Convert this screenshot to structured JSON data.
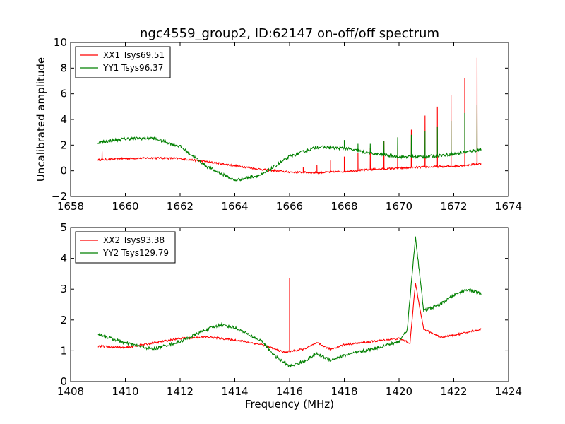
{
  "title": "ngc4559_group2, ID:62147 on-off/off spectrum",
  "colors": {
    "red": "#ff0000",
    "green": "#008000"
  },
  "chart_data": [
    {
      "type": "line",
      "xlabel": "",
      "ylabel": "Uncalibrated amplitude",
      "xlim": [
        1658,
        1674
      ],
      "ylim": [
        -2,
        10
      ],
      "xticks": [
        "1658",
        "1660",
        "1662",
        "1664",
        "1666",
        "1668",
        "1670",
        "1672",
        "1674"
      ],
      "yticks": [
        "−2",
        "0",
        "2",
        "4",
        "6",
        "8",
        "10"
      ],
      "legend_position": "top-left",
      "series": [
        {
          "name": "XX1 Tsys69.51",
          "color": "#ff0000",
          "x": [
            1659.0,
            1660.0,
            1661.0,
            1662.0,
            1663.0,
            1664.0,
            1665.0,
            1666.0,
            1667.0,
            1668.0,
            1669.0,
            1670.0,
            1671.0,
            1672.0,
            1673.0
          ],
          "values": [
            0.85,
            0.95,
            1.0,
            0.95,
            0.7,
            0.4,
            0.1,
            -0.1,
            -0.15,
            -0.05,
            0.1,
            0.2,
            0.3,
            0.35,
            0.55
          ],
          "spikes": [
            [
              1659.15,
              1.5
            ],
            [
              1666.5,
              0.3
            ],
            [
              1667.0,
              0.45
            ],
            [
              1667.5,
              0.8
            ],
            [
              1668.0,
              1.1
            ],
            [
              1668.5,
              1.4
            ],
            [
              1668.95,
              1.8
            ],
            [
              1669.45,
              2.3
            ],
            [
              1669.95,
              2.6
            ],
            [
              1670.45,
              3.2
            ],
            [
              1670.95,
              4.3
            ],
            [
              1671.4,
              5.0
            ],
            [
              1671.9,
              5.9
            ],
            [
              1672.4,
              7.2
            ],
            [
              1672.85,
              8.8
            ]
          ]
        },
        {
          "name": "YY1 Tsys96.37",
          "color": "#008000",
          "x": [
            1659.0,
            1660.0,
            1661.0,
            1662.0,
            1663.0,
            1664.0,
            1665.0,
            1666.0,
            1667.0,
            1668.0,
            1669.0,
            1670.0,
            1671.0,
            1672.0,
            1673.0
          ],
          "values": [
            2.2,
            2.5,
            2.55,
            1.9,
            0.3,
            -0.75,
            -0.3,
            1.1,
            1.85,
            1.75,
            1.35,
            1.1,
            1.1,
            1.3,
            1.65
          ],
          "spikes": [
            [
              1668.0,
              2.4
            ],
            [
              1668.5,
              2.1
            ],
            [
              1668.95,
              2.1
            ],
            [
              1669.45,
              2.3
            ],
            [
              1669.95,
              2.6
            ],
            [
              1670.45,
              2.8
            ],
            [
              1670.95,
              3.1
            ],
            [
              1671.4,
              3.4
            ],
            [
              1671.9,
              3.9
            ],
            [
              1672.4,
              4.5
            ],
            [
              1672.85,
              5.1
            ]
          ]
        }
      ]
    },
    {
      "type": "line",
      "xlabel": "Frequency (MHz)",
      "ylabel": "",
      "xlim": [
        1408,
        1424
      ],
      "ylim": [
        0,
        5
      ],
      "xticks": [
        "1408",
        "1410",
        "1412",
        "1414",
        "1416",
        "1418",
        "1420",
        "1422",
        "1424"
      ],
      "yticks": [
        "0",
        "1",
        "2",
        "3",
        "4",
        "5"
      ],
      "legend_position": "top-left",
      "series": [
        {
          "name": "XX2 Tsys93.38",
          "color": "#ff0000",
          "x": [
            1409.0,
            1410.0,
            1411.0,
            1412.0,
            1413.0,
            1414.0,
            1415.0,
            1415.8,
            1416.5,
            1417.0,
            1417.5,
            1418.0,
            1419.0,
            1420.0,
            1420.4,
            1420.6,
            1420.9,
            1421.5,
            1422.0,
            1423.0
          ],
          "values": [
            1.15,
            1.1,
            1.25,
            1.4,
            1.45,
            1.35,
            1.2,
            0.95,
            1.05,
            1.25,
            1.05,
            1.2,
            1.3,
            1.4,
            1.25,
            3.2,
            1.7,
            1.45,
            1.5,
            1.7
          ],
          "spikes": [
            [
              1416.0,
              3.35
            ]
          ]
        },
        {
          "name": "YY2 Tsys129.79",
          "color": "#008000",
          "x": [
            1409.0,
            1410.0,
            1411.0,
            1412.0,
            1413.0,
            1413.5,
            1414.0,
            1415.0,
            1415.5,
            1416.0,
            1416.5,
            1417.0,
            1417.5,
            1418.0,
            1419.0,
            1420.0,
            1420.3,
            1420.6,
            1420.9,
            1421.5,
            1422.0,
            1422.5,
            1423.0
          ],
          "values": [
            1.55,
            1.25,
            1.05,
            1.3,
            1.7,
            1.85,
            1.75,
            1.3,
            0.8,
            0.5,
            0.65,
            0.9,
            0.7,
            0.85,
            1.05,
            1.3,
            1.7,
            4.7,
            2.3,
            2.5,
            2.8,
            3.0,
            2.85
          ],
          "spikes": []
        }
      ]
    }
  ]
}
